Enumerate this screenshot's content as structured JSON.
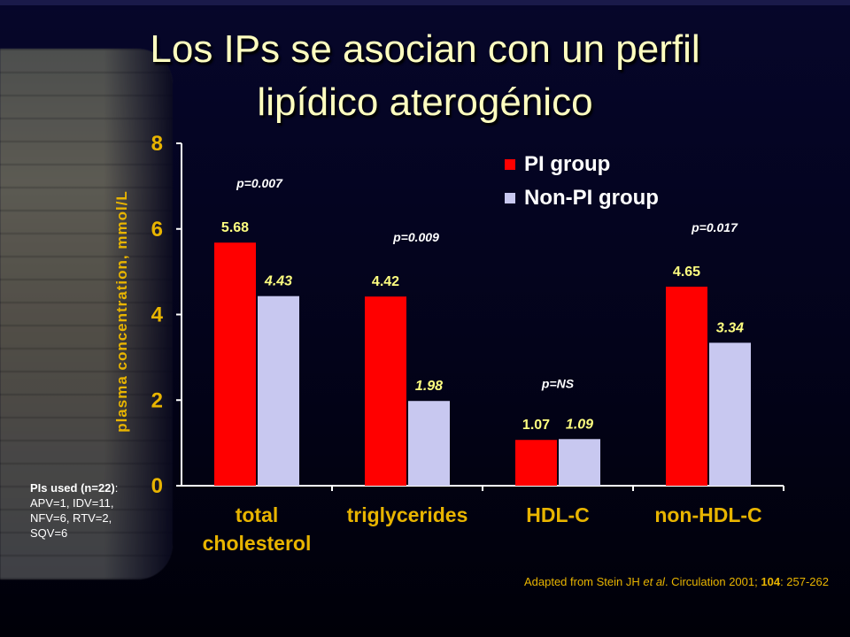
{
  "slide": {
    "title_line1": "Los IPs se asocian con un perfil",
    "title_line2": "lipídico aterogénico",
    "pi_note_label": "PIs used (n=22)",
    "pi_note_text": ": APV=1, IDV=11, NFV=6, RTV=2, SQV=6",
    "source_prefix": "Adapted from Stein JH ",
    "source_etal": "et al",
    "source_mid": ". Circulation 2001; ",
    "source_volume": "104",
    "source_suffix": ": 257-262"
  },
  "colors": {
    "pi": "#ff0000",
    "non_pi": "#c8c8f0",
    "axis": "#ffffff",
    "tick_label": "#e8b400",
    "value_label": "#ffff80",
    "title": "#ffffc0"
  },
  "chart_data": {
    "type": "bar",
    "title": "Los IPs se asocian con un perfil lipídico aterogénico",
    "xlabel": "",
    "ylabel": "plasma concentration, mmol/L",
    "ylim": [
      0,
      8
    ],
    "yticks": [
      "0",
      "2",
      "4",
      "6",
      "8"
    ],
    "categories": [
      "total cholesterol",
      "triglycerides",
      "HDL-C",
      "non-HDL-C"
    ],
    "series": [
      {
        "name": "PI group",
        "values": [
          5.68,
          4.42,
          1.07,
          4.65
        ],
        "labels": [
          "5.68",
          "4.42",
          "1.07",
          "4.65"
        ]
      },
      {
        "name": "Non-PI group",
        "values": [
          4.43,
          1.98,
          1.09,
          3.34
        ],
        "labels": [
          "4.43",
          "1.98",
          "1.09",
          "3.34"
        ]
      }
    ],
    "annotations": [
      "p=0.007",
      "p=0.009",
      "p=NS",
      "p=0.017"
    ],
    "legend": "top-right",
    "grid": false
  }
}
